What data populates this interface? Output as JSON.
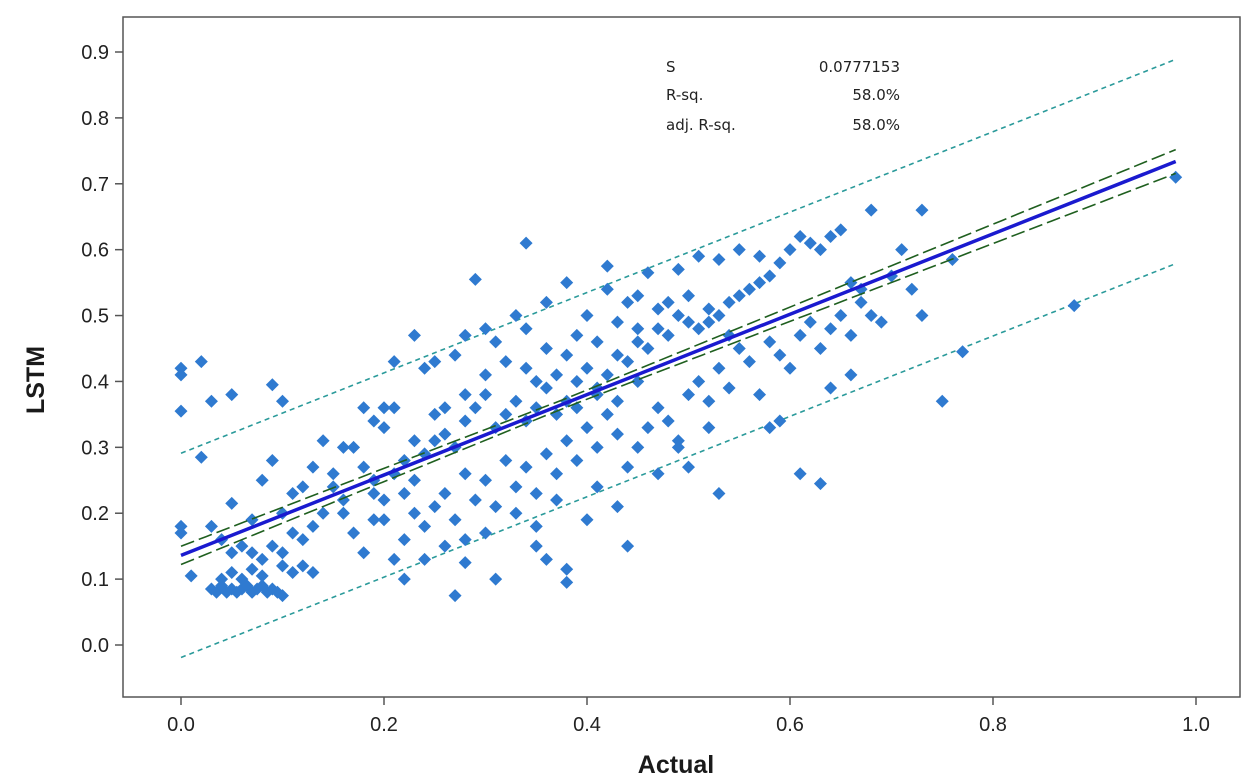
{
  "chart_data": {
    "type": "scatter",
    "xlabel": "Actual",
    "ylabel": "LSTM",
    "xlim": [
      -0.05,
      1.02
    ],
    "ylim": [
      -0.08,
      0.94
    ],
    "x_ticks": [
      "0.0",
      "0.2",
      "0.4",
      "0.6",
      "0.8",
      "1.0"
    ],
    "y_ticks": [
      "0.0",
      "0.1",
      "0.2",
      "0.3",
      "0.4",
      "0.5",
      "0.6",
      "0.7",
      "0.8",
      "0.9"
    ],
    "stats": {
      "s_label": "S",
      "s_value": "0.0777153",
      "rsq_label": "R-sq.",
      "rsq_value": "58.0%",
      "adjrsq_label": "adj. R-sq.",
      "adjrsq_value": "58.0%"
    },
    "fit": {
      "intercept": 0.136,
      "slope": 0.61
    },
    "ci_halfwidth": 0.012,
    "pi_offset": 0.155,
    "colors": {
      "points": "#2f7ad0",
      "fit": "#1a1acf",
      "ci": "#1f5f1f",
      "pi": "#2a9a9a",
      "frame": "#555555"
    },
    "points": [
      [
        0.0,
        0.42
      ],
      [
        0.0,
        0.41
      ],
      [
        0.0,
        0.355
      ],
      [
        0.0,
        0.18
      ],
      [
        0.0,
        0.17
      ],
      [
        0.02,
        0.43
      ],
      [
        0.02,
        0.285
      ],
      [
        0.01,
        0.105
      ],
      [
        0.03,
        0.37
      ],
      [
        0.05,
        0.38
      ],
      [
        0.09,
        0.395
      ],
      [
        0.1,
        0.37
      ],
      [
        0.76,
        0.585
      ],
      [
        0.77,
        0.445
      ],
      [
        0.75,
        0.37
      ],
      [
        0.88,
        0.515
      ],
      [
        0.98,
        0.71
      ],
      [
        0.73,
        0.5
      ],
      [
        0.73,
        0.66
      ],
      [
        0.68,
        0.66
      ],
      [
        0.34,
        0.61
      ],
      [
        0.42,
        0.575
      ],
      [
        0.29,
        0.555
      ],
      [
        0.03,
        0.085
      ],
      [
        0.035,
        0.08
      ],
      [
        0.04,
        0.09
      ],
      [
        0.045,
        0.08
      ],
      [
        0.05,
        0.085
      ],
      [
        0.055,
        0.08
      ],
      [
        0.06,
        0.085
      ],
      [
        0.065,
        0.09
      ],
      [
        0.07,
        0.08
      ],
      [
        0.075,
        0.085
      ],
      [
        0.08,
        0.09
      ],
      [
        0.085,
        0.08
      ],
      [
        0.09,
        0.085
      ],
      [
        0.095,
        0.08
      ],
      [
        0.1,
        0.075
      ],
      [
        0.04,
        0.1
      ],
      [
        0.05,
        0.11
      ],
      [
        0.06,
        0.1
      ],
      [
        0.07,
        0.115
      ],
      [
        0.08,
        0.105
      ],
      [
        0.1,
        0.12
      ],
      [
        0.11,
        0.11
      ],
      [
        0.12,
        0.12
      ],
      [
        0.13,
        0.11
      ],
      [
        0.27,
        0.075
      ],
      [
        0.22,
        0.1
      ],
      [
        0.31,
        0.1
      ],
      [
        0.35,
        0.15
      ],
      [
        0.36,
        0.13
      ],
      [
        0.38,
        0.095
      ],
      [
        0.38,
        0.115
      ],
      [
        0.28,
        0.125
      ],
      [
        0.44,
        0.15
      ],
      [
        0.63,
        0.245
      ],
      [
        0.61,
        0.26
      ],
      [
        0.53,
        0.23
      ],
      [
        0.66,
        0.41
      ],
      [
        0.64,
        0.39
      ],
      [
        0.59,
        0.34
      ],
      [
        0.58,
        0.33
      ],
      [
        0.05,
        0.215
      ],
      [
        0.07,
        0.19
      ],
      [
        0.08,
        0.25
      ],
      [
        0.09,
        0.28
      ],
      [
        0.1,
        0.2
      ],
      [
        0.11,
        0.23
      ],
      [
        0.12,
        0.24
      ],
      [
        0.13,
        0.27
      ],
      [
        0.14,
        0.31
      ],
      [
        0.15,
        0.26
      ],
      [
        0.16,
        0.22
      ],
      [
        0.17,
        0.3
      ],
      [
        0.18,
        0.27
      ],
      [
        0.19,
        0.25
      ],
      [
        0.2,
        0.33
      ],
      [
        0.21,
        0.36
      ],
      [
        0.22,
        0.28
      ],
      [
        0.23,
        0.31
      ],
      [
        0.24,
        0.29
      ],
      [
        0.25,
        0.35
      ],
      [
        0.26,
        0.32
      ],
      [
        0.27,
        0.3
      ],
      [
        0.28,
        0.34
      ],
      [
        0.29,
        0.36
      ],
      [
        0.3,
        0.38
      ],
      [
        0.31,
        0.33
      ],
      [
        0.32,
        0.35
      ],
      [
        0.33,
        0.37
      ],
      [
        0.34,
        0.34
      ],
      [
        0.35,
        0.36
      ],
      [
        0.36,
        0.39
      ],
      [
        0.37,
        0.35
      ],
      [
        0.38,
        0.37
      ],
      [
        0.39,
        0.4
      ],
      [
        0.4,
        0.42
      ],
      [
        0.41,
        0.38
      ],
      [
        0.42,
        0.41
      ],
      [
        0.43,
        0.44
      ],
      [
        0.44,
        0.43
      ],
      [
        0.45,
        0.46
      ],
      [
        0.46,
        0.45
      ],
      [
        0.47,
        0.48
      ],
      [
        0.48,
        0.47
      ],
      [
        0.49,
        0.5
      ],
      [
        0.5,
        0.49
      ],
      [
        0.51,
        0.48
      ],
      [
        0.52,
        0.51
      ],
      [
        0.53,
        0.5
      ],
      [
        0.54,
        0.52
      ],
      [
        0.55,
        0.53
      ],
      [
        0.56,
        0.54
      ],
      [
        0.57,
        0.55
      ],
      [
        0.58,
        0.56
      ],
      [
        0.59,
        0.58
      ],
      [
        0.6,
        0.6
      ],
      [
        0.61,
        0.62
      ],
      [
        0.62,
        0.61
      ],
      [
        0.63,
        0.6
      ],
      [
        0.64,
        0.62
      ],
      [
        0.65,
        0.63
      ],
      [
        0.66,
        0.55
      ],
      [
        0.67,
        0.54
      ],
      [
        0.68,
        0.5
      ],
      [
        0.7,
        0.56
      ],
      [
        0.71,
        0.6
      ],
      [
        0.72,
        0.54
      ],
      [
        0.55,
        0.6
      ],
      [
        0.57,
        0.59
      ],
      [
        0.53,
        0.585
      ],
      [
        0.51,
        0.59
      ],
      [
        0.49,
        0.57
      ],
      [
        0.46,
        0.565
      ],
      [
        0.45,
        0.53
      ],
      [
        0.44,
        0.52
      ],
      [
        0.42,
        0.54
      ],
      [
        0.4,
        0.5
      ],
      [
        0.38,
        0.55
      ],
      [
        0.36,
        0.52
      ],
      [
        0.34,
        0.48
      ],
      [
        0.33,
        0.5
      ],
      [
        0.31,
        0.46
      ],
      [
        0.3,
        0.48
      ],
      [
        0.28,
        0.47
      ],
      [
        0.27,
        0.44
      ],
      [
        0.25,
        0.43
      ],
      [
        0.23,
        0.47
      ],
      [
        0.21,
        0.43
      ],
      [
        0.24,
        0.42
      ],
      [
        0.2,
        0.36
      ],
      [
        0.19,
        0.34
      ],
      [
        0.18,
        0.36
      ],
      [
        0.16,
        0.3
      ],
      [
        0.15,
        0.24
      ],
      [
        0.14,
        0.2
      ],
      [
        0.13,
        0.18
      ],
      [
        0.12,
        0.16
      ],
      [
        0.11,
        0.17
      ],
      [
        0.1,
        0.14
      ],
      [
        0.09,
        0.15
      ],
      [
        0.08,
        0.13
      ],
      [
        0.07,
        0.14
      ],
      [
        0.06,
        0.15
      ],
      [
        0.05,
        0.14
      ],
      [
        0.04,
        0.16
      ],
      [
        0.03,
        0.18
      ],
      [
        0.16,
        0.2
      ],
      [
        0.17,
        0.17
      ],
      [
        0.18,
        0.14
      ],
      [
        0.19,
        0.19
      ],
      [
        0.2,
        0.22
      ],
      [
        0.21,
        0.13
      ],
      [
        0.22,
        0.16
      ],
      [
        0.23,
        0.2
      ],
      [
        0.24,
        0.18
      ],
      [
        0.25,
        0.21
      ],
      [
        0.26,
        0.23
      ],
      [
        0.27,
        0.19
      ],
      [
        0.28,
        0.26
      ],
      [
        0.29,
        0.22
      ],
      [
        0.3,
        0.25
      ],
      [
        0.31,
        0.21
      ],
      [
        0.32,
        0.28
      ],
      [
        0.33,
        0.24
      ],
      [
        0.34,
        0.27
      ],
      [
        0.35,
        0.23
      ],
      [
        0.36,
        0.29
      ],
      [
        0.37,
        0.26
      ],
      [
        0.38,
        0.31
      ],
      [
        0.39,
        0.28
      ],
      [
        0.4,
        0.33
      ],
      [
        0.41,
        0.3
      ],
      [
        0.42,
        0.35
      ],
      [
        0.43,
        0.32
      ],
      [
        0.44,
        0.27
      ],
      [
        0.45,
        0.3
      ],
      [
        0.46,
        0.33
      ],
      [
        0.47,
        0.36
      ],
      [
        0.48,
        0.34
      ],
      [
        0.49,
        0.31
      ],
      [
        0.5,
        0.38
      ],
      [
        0.51,
        0.4
      ],
      [
        0.52,
        0.37
      ],
      [
        0.53,
        0.42
      ],
      [
        0.54,
        0.39
      ],
      [
        0.55,
        0.45
      ],
      [
        0.56,
        0.43
      ],
      [
        0.57,
        0.38
      ],
      [
        0.58,
        0.46
      ],
      [
        0.59,
        0.44
      ],
      [
        0.6,
        0.42
      ],
      [
        0.61,
        0.47
      ],
      [
        0.62,
        0.49
      ],
      [
        0.63,
        0.45
      ],
      [
        0.64,
        0.48
      ],
      [
        0.65,
        0.5
      ],
      [
        0.66,
        0.47
      ],
      [
        0.67,
        0.52
      ],
      [
        0.69,
        0.49
      ],
      [
        0.47,
        0.26
      ],
      [
        0.49,
        0.3
      ],
      [
        0.5,
        0.27
      ],
      [
        0.52,
        0.33
      ],
      [
        0.43,
        0.21
      ],
      [
        0.41,
        0.24
      ],
      [
        0.4,
        0.19
      ],
      [
        0.37,
        0.22
      ],
      [
        0.35,
        0.18
      ],
      [
        0.33,
        0.2
      ],
      [
        0.3,
        0.17
      ],
      [
        0.28,
        0.16
      ],
      [
        0.26,
        0.15
      ],
      [
        0.24,
        0.13
      ],
      [
        0.3,
        0.41
      ],
      [
        0.32,
        0.43
      ],
      [
        0.34,
        0.42
      ],
      [
        0.36,
        0.45
      ],
      [
        0.38,
        0.44
      ],
      [
        0.39,
        0.47
      ],
      [
        0.41,
        0.46
      ],
      [
        0.43,
        0.49
      ],
      [
        0.45,
        0.48
      ],
      [
        0.47,
        0.51
      ],
      [
        0.48,
        0.52
      ],
      [
        0.5,
        0.53
      ],
      [
        0.52,
        0.49
      ],
      [
        0.54,
        0.47
      ],
      [
        0.35,
        0.4
      ],
      [
        0.37,
        0.41
      ],
      [
        0.39,
        0.36
      ],
      [
        0.41,
        0.39
      ],
      [
        0.43,
        0.37
      ],
      [
        0.45,
        0.4
      ],
      [
        0.28,
        0.38
      ],
      [
        0.26,
        0.36
      ],
      [
        0.25,
        0.31
      ],
      [
        0.23,
        0.25
      ],
      [
        0.22,
        0.23
      ],
      [
        0.21,
        0.26
      ],
      [
        0.2,
        0.19
      ],
      [
        0.19,
        0.23
      ]
    ]
  }
}
